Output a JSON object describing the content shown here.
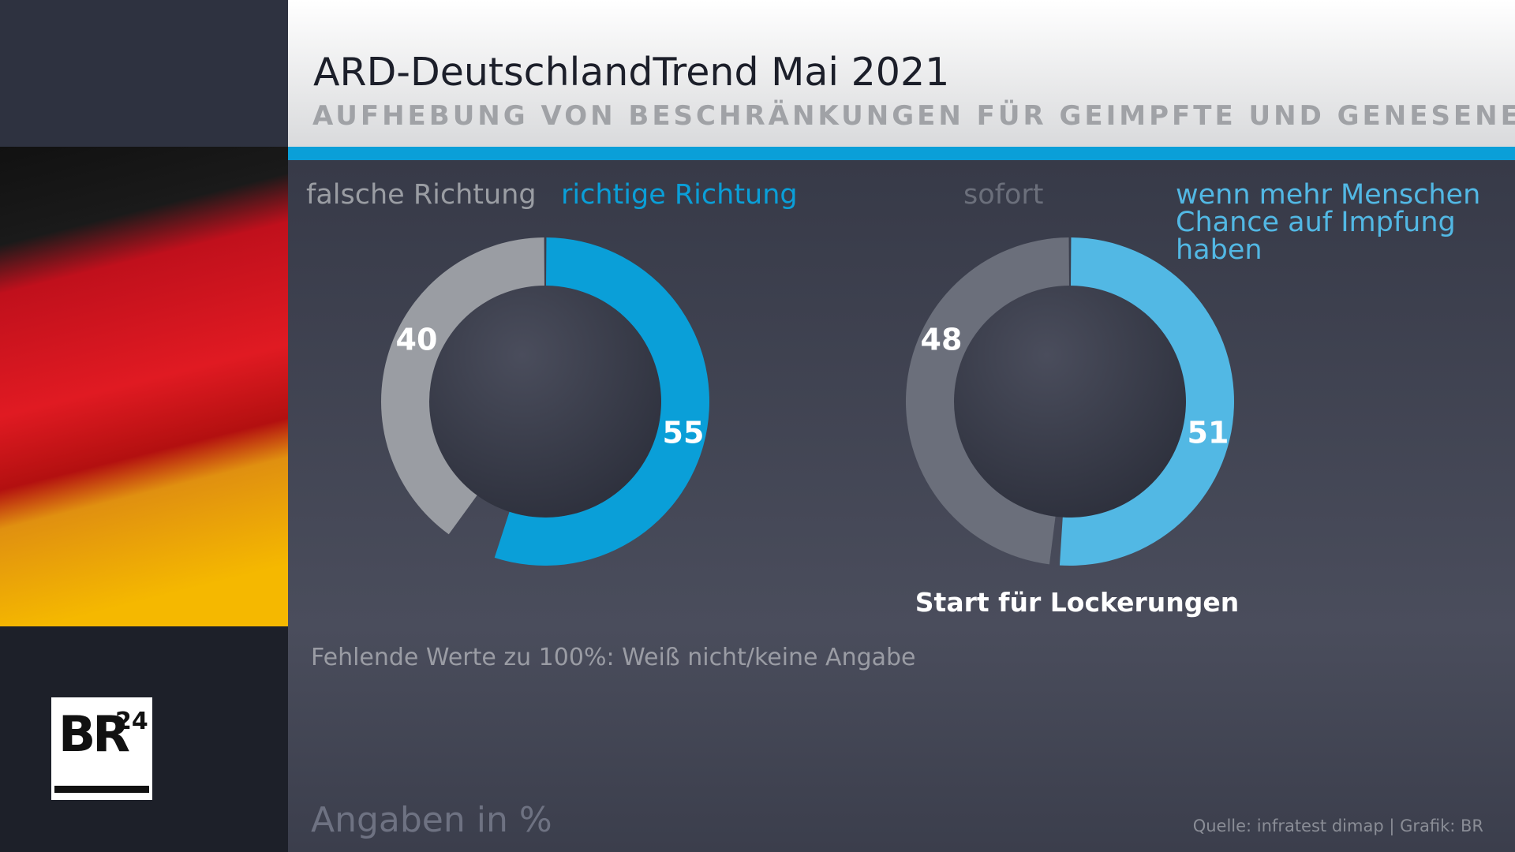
{
  "header": {
    "title": "ARD-DeutschlandTrend Mai 2021",
    "subtitle": "AUFHEBUNG VON BESCHRÄNKUNGEN FÜR GEIMPFTE UND GENESENE"
  },
  "chart_data": [
    {
      "type": "pie",
      "categories": [
        "falsche Richtung",
        "richtige Richtung"
      ],
      "values": [
        40,
        55
      ],
      "colors": [
        "#9a9da3",
        "#0a9fd8"
      ]
    },
    {
      "type": "pie",
      "title": "Start für Lockerungen",
      "categories": [
        "sofort",
        "wenn mehr Menschen Chance auf Impfung haben"
      ],
      "values": [
        48,
        51
      ],
      "colors": [
        "#6b6f7b",
        "#52b8e4"
      ]
    }
  ],
  "note": "Fehlende Werte zu 100%: Weiß nicht/keine Angabe",
  "unit": "Angaben in %",
  "source": "Quelle: infratest dimap | Grafik: BR",
  "logo": {
    "brand": "BR",
    "number": "24"
  }
}
